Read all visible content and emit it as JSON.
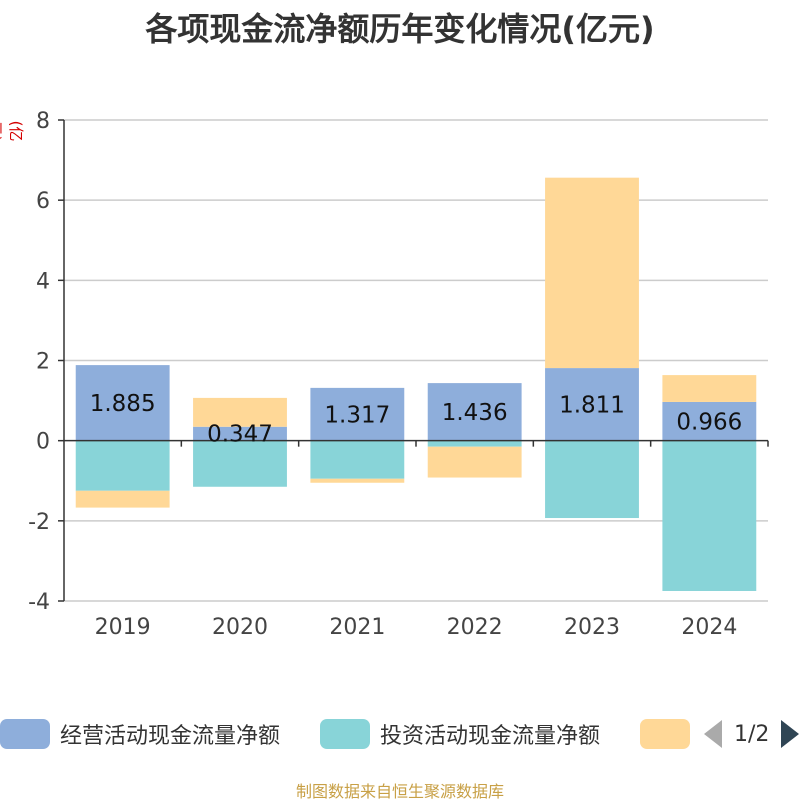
{
  "title": "各项现金流净额历年变化情况(亿元)",
  "unit_label": "(亿元)",
  "legend": {
    "items": [
      {
        "label": "经营活动现金流量净额",
        "color": "#8eaedb"
      },
      {
        "label": "投资活动现金流量净额",
        "color": "#88d4d8"
      },
      {
        "label": "",
        "color": "#ffd897"
      }
    ],
    "page_indicator": "1/2"
  },
  "footer": "制图数据来自恒生聚源数据库",
  "chart_data": {
    "type": "bar",
    "stacked": true,
    "categories": [
      "2019",
      "2020",
      "2021",
      "2022",
      "2023",
      "2024"
    ],
    "ylim": [
      -4,
      8
    ],
    "yticks": [
      -4,
      -2,
      0,
      2,
      4,
      6,
      8
    ],
    "grid": true,
    "legend_position": "bottom",
    "series": [
      {
        "name": "经营活动现金流量净额",
        "color": "#8eaedb",
        "values": [
          1.885,
          0.347,
          1.317,
          1.436,
          1.811,
          0.966
        ],
        "labels": [
          "1.885",
          "0.347",
          "1.317",
          "1.436",
          "1.811",
          "0.966"
        ]
      },
      {
        "name": "投资活动现金流量净额",
        "color": "#88d4d8",
        "values": [
          -1.25,
          -1.15,
          -0.95,
          -0.15,
          -1.93,
          -3.75
        ]
      },
      {
        "color": "#ffd897",
        "values": [
          -0.42,
          0.72,
          -0.1,
          -0.77,
          4.75,
          0.67
        ]
      }
    ]
  }
}
